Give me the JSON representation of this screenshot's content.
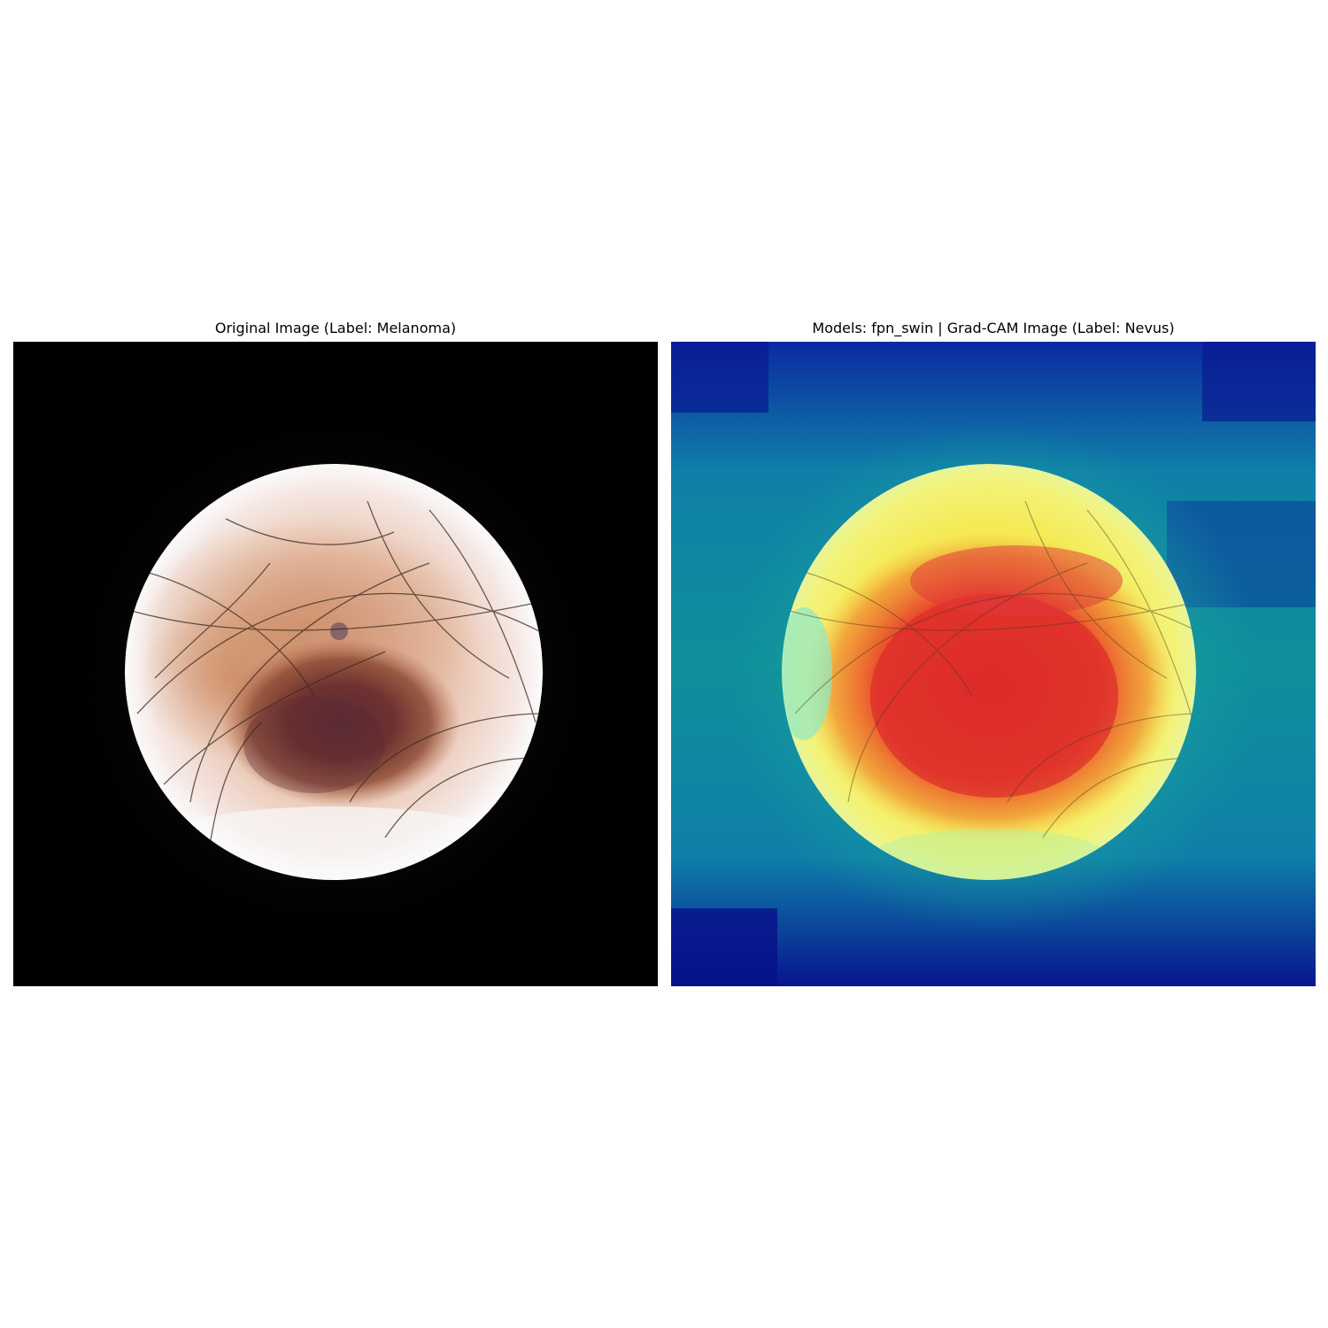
{
  "figure": {
    "panels": [
      {
        "title": "Original Image (Label: Melanoma)"
      },
      {
        "title": "Models: fpn_swin | Grad-CAM Image (Label: Nevus)"
      }
    ]
  },
  "colors": {
    "background": "#ffffff",
    "image_border_black": "#000000",
    "skin_light": "#f3e6e2",
    "lesion_brown": "#7a3a2a",
    "lesion_dark": "#5a2a30",
    "cam_low": "#08158f",
    "cam_mid": "#0f8f9a",
    "cam_high_yellow": "#f5f050",
    "cam_peak_red": "#e02a2a"
  }
}
